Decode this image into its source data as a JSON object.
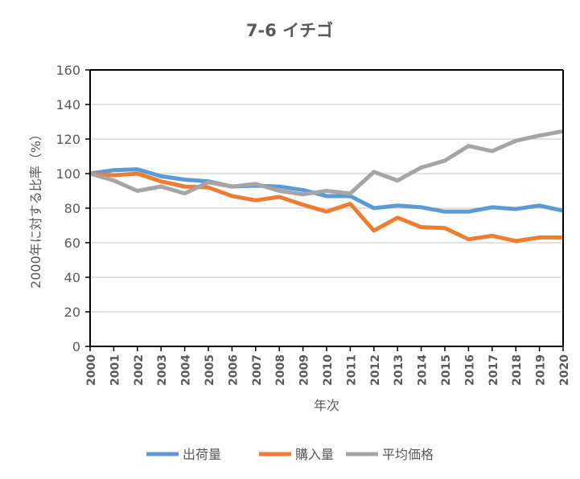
{
  "chart_data": {
    "type": "line",
    "title": "7-6 イチゴ",
    "xlabel": "年次",
    "ylabel": "2000年に対する比率（%）",
    "ylim": [
      0,
      160
    ],
    "yticks": [
      0,
      20,
      40,
      60,
      80,
      100,
      120,
      140,
      160
    ],
    "grid": true,
    "legend": "bottom",
    "x": [
      "2000",
      "2001",
      "2002",
      "2003",
      "2004",
      "2005",
      "2006",
      "2007",
      "2008",
      "2009",
      "2010",
      "2011",
      "2012",
      "2013",
      "2014",
      "2015",
      "2016",
      "2017",
      "2018",
      "2019",
      "2020"
    ],
    "series": [
      {
        "name": "出荷量",
        "color": "#5B9BD5",
        "values": [
          100,
          102,
          102.5,
          98.5,
          96.5,
          95.5,
          92.5,
          93,
          92.5,
          90.5,
          87,
          87,
          80,
          81.5,
          80.5,
          78,
          78,
          80.5,
          79.5,
          81.5,
          78.5
        ]
      },
      {
        "name": "購入量",
        "color": "#ED7D31",
        "values": [
          100,
          99,
          100,
          95.5,
          92.5,
          92,
          87,
          84.5,
          86.5,
          82,
          78,
          82.5,
          67,
          74.5,
          69,
          68.5,
          62,
          64,
          61,
          63,
          63
        ]
      },
      {
        "name": "平均価格",
        "color": "#A5A5A5",
        "values": [
          100,
          96,
          90,
          92.5,
          88.5,
          95,
          92.5,
          94,
          90,
          88,
          90,
          88.5,
          101,
          96,
          103.5,
          107.5,
          116,
          113,
          119,
          122,
          124.5
        ]
      }
    ]
  }
}
